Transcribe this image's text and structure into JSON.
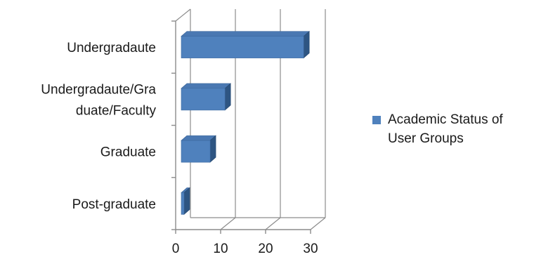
{
  "chart_data": {
    "type": "bar",
    "orientation": "horizontal",
    "style": "3d-clustered-bar",
    "title": "",
    "xlabel": "",
    "ylabel": "",
    "categories": [
      "Undergradaute",
      "Undergradaute/Graduate/Faculty",
      "Graduate",
      "Post-graduate"
    ],
    "category_label_lines": [
      [
        "Undergradaute"
      ],
      [
        "Undergradaute/Gra",
        "duate/Faculty"
      ],
      [
        "Graduate"
      ],
      [
        "Post-graduate"
      ]
    ],
    "series": [
      {
        "name": "Academic Status of User Groups",
        "values": [
          28,
          10.5,
          7.2,
          1.2
        ],
        "color": "#4f81bd"
      }
    ],
    "xlim": [
      0,
      30
    ],
    "xticks": [
      0,
      10,
      20,
      30
    ],
    "grid": true,
    "legend": "right"
  }
}
